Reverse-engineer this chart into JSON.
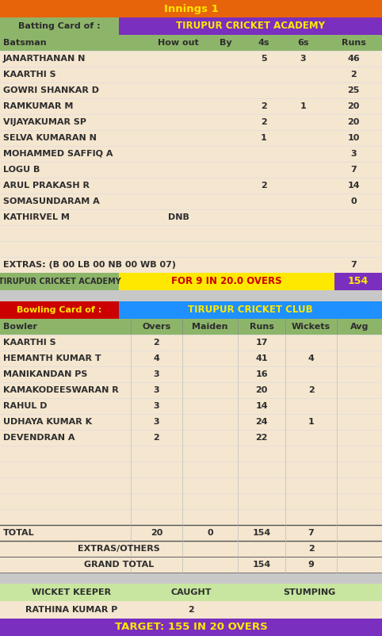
{
  "innings_title": "Innings 1",
  "batting_label": "Batting Card of :",
  "batting_team": "TIRUPUR CRICKET ACADEMY",
  "bat_headers": [
    "Batsman",
    "How out",
    "By",
    "4s",
    "6s",
    "Runs"
  ],
  "batsmen": [
    {
      "name": "JANARTHANAN N",
      "how_out": "",
      "by": "",
      "fours": "5",
      "sixes": "3",
      "runs": "46"
    },
    {
      "name": "KAARTHI S",
      "how_out": "",
      "by": "",
      "fours": "",
      "sixes": "",
      "runs": "2"
    },
    {
      "name": "GOWRI SHANKAR D",
      "how_out": "",
      "by": "",
      "fours": "",
      "sixes": "",
      "runs": "25"
    },
    {
      "name": "RAMKUMAR M",
      "how_out": "",
      "by": "",
      "fours": "2",
      "sixes": "1",
      "runs": "20"
    },
    {
      "name": "VIJAYAKUMAR SP",
      "how_out": "",
      "by": "",
      "fours": "2",
      "sixes": "",
      "runs": "20"
    },
    {
      "name": "SELVA KUMARAN N",
      "how_out": "",
      "by": "",
      "fours": "1",
      "sixes": "",
      "runs": "10"
    },
    {
      "name": "MOHAMMED SAFFIQ A",
      "how_out": "",
      "by": "",
      "fours": "",
      "sixes": "",
      "runs": "3"
    },
    {
      "name": "LOGU B",
      "how_out": "",
      "by": "",
      "fours": "",
      "sixes": "",
      "runs": "7"
    },
    {
      "name": "ARUL PRAKASH R",
      "how_out": "",
      "by": "",
      "fours": "2",
      "sixes": "",
      "runs": "14"
    },
    {
      "name": "SOMASUNDARAM A",
      "how_out": "",
      "by": "",
      "fours": "",
      "sixes": "",
      "runs": "0"
    },
    {
      "name": "KATHIRVEL M",
      "how_out": "DNB",
      "by": "",
      "fours": "",
      "sixes": "",
      "runs": ""
    }
  ],
  "extras_label": "EXTRAS: (B 00 LB 00 NB 00 WB 07)",
  "extras_runs": "7",
  "summary_team": "TIRUPUR CRICKET ACADEMY",
  "summary_middle": "FOR 9 IN 20.0 OVERS",
  "summary_score": "154",
  "bowling_label": "Bowling Card of :",
  "bowling_team": "TIRUPUR CRICKET CLUB",
  "bowl_headers": [
    "Bowler",
    "Overs",
    "Maiden",
    "Runs",
    "Wickets",
    "Avg"
  ],
  "bowlers": [
    {
      "name": "KAARTHI S",
      "overs": "2",
      "maiden": "",
      "runs": "17",
      "wickets": "",
      "avg": ""
    },
    {
      "name": "HEMANTH KUMAR T",
      "overs": "4",
      "maiden": "",
      "runs": "41",
      "wickets": "4",
      "avg": ""
    },
    {
      "name": "MANIKANDAN PS",
      "overs": "3",
      "maiden": "",
      "runs": "16",
      "wickets": "",
      "avg": ""
    },
    {
      "name": "KAMAKODEESWARAN R",
      "overs": "3",
      "maiden": "",
      "runs": "20",
      "wickets": "2",
      "avg": ""
    },
    {
      "name": "RAHUL D",
      "overs": "3",
      "maiden": "",
      "runs": "14",
      "wickets": "",
      "avg": ""
    },
    {
      "name": "UDHAYA KUMAR K",
      "overs": "3",
      "maiden": "",
      "runs": "24",
      "wickets": "1",
      "avg": ""
    },
    {
      "name": "DEVENDRAN A",
      "overs": "2",
      "maiden": "",
      "runs": "22",
      "wickets": "",
      "avg": ""
    }
  ],
  "total_overs": "20",
  "total_maiden": "0",
  "total_runs": "154",
  "total_wickets": "7",
  "extras_others": "2",
  "grand_total_runs": "154",
  "grand_total_wickets": "9",
  "wk_keeper": "RATHINA KUMAR P",
  "wk_caught": "2",
  "wk_stumping": "",
  "target_label": "TARGET: 155 IN 20 OVERS",
  "color_orange": "#E8640A",
  "color_purple": "#7B2FBE",
  "color_green_header": "#8DB56A",
  "color_bg": "#F5E6D0",
  "color_yellow": "#FFE800",
  "color_red": "#CC0000",
  "color_blue": "#1E90FF",
  "color_light_green": "#C8E6A0",
  "color_text_yellow": "#FFE800",
  "color_text_dark": "#2D2D2D",
  "color_gray_sep": "#C8C8C8"
}
